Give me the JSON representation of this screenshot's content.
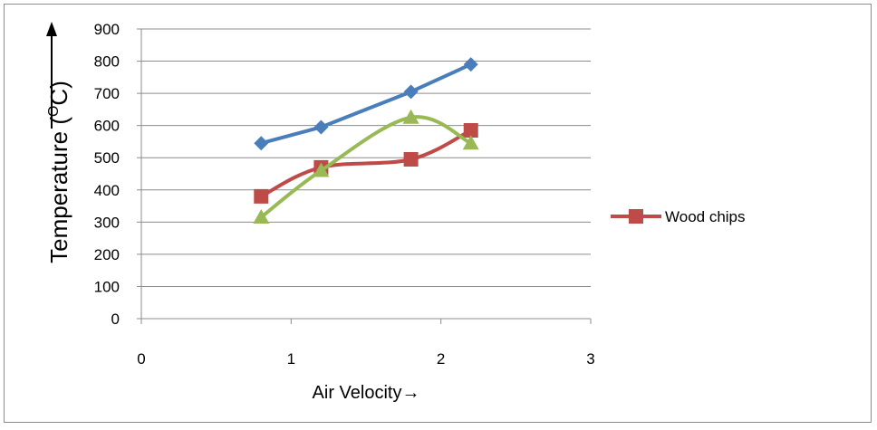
{
  "chart_data": {
    "type": "line",
    "xlabel": "Air Velocity→",
    "ylabel": "Temperature (",
    "ylabel_sup": "O",
    "ylabel_unit": "C)",
    "xlim": [
      0,
      3
    ],
    "ylim": [
      0,
      900
    ],
    "x_ticks": [
      "0",
      "1",
      "2",
      "3"
    ],
    "y_ticks": [
      "0",
      "100",
      "200",
      "300",
      "400",
      "500",
      "600",
      "700",
      "800",
      "900"
    ],
    "grid": "horizontal",
    "legend_position": "right",
    "series": [
      {
        "marker": "diamond",
        "color": "#4a7ebb",
        "smooth": false,
        "x": [
          0.8,
          1.2,
          1.8,
          2.2
        ],
        "y": [
          545,
          595,
          705,
          790
        ]
      },
      {
        "name": "Wood chips",
        "marker": "square",
        "color": "#be4b48",
        "smooth": true,
        "x": [
          0.8,
          1.2,
          1.8,
          2.2
        ],
        "y": [
          380,
          470,
          495,
          585
        ]
      },
      {
        "marker": "triangle",
        "color": "#98b954",
        "smooth": true,
        "x": [
          0.8,
          1.2,
          1.8,
          2.2
        ],
        "y": [
          315,
          460,
          625,
          545
        ]
      }
    ]
  }
}
